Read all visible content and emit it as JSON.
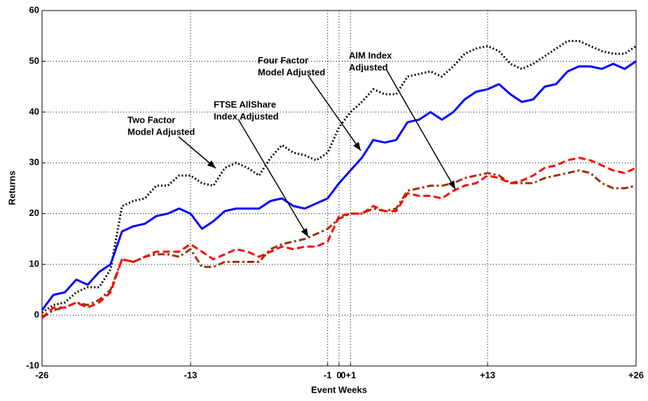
{
  "chart_data": {
    "type": "line",
    "xlabel": "Event Weeks",
    "ylabel": "Returns",
    "x": [
      -26,
      -25,
      -24,
      -23,
      -22,
      -21,
      -20,
      -19,
      -18,
      -17,
      -16,
      -15,
      -14,
      -13,
      -12,
      -11,
      -10,
      -9,
      -8,
      -7,
      -6,
      -5,
      -4,
      -3,
      -2,
      -1,
      0,
      1,
      2,
      3,
      4,
      5,
      6,
      7,
      8,
      9,
      10,
      11,
      12,
      13,
      14,
      15,
      16,
      17,
      18,
      19,
      20,
      21,
      22,
      23,
      24,
      25,
      26
    ],
    "xlim": [
      -26,
      26
    ],
    "xticks": [
      -26,
      -13,
      -1,
      0,
      {
        "value": 1,
        "label": "0+1"
      },
      {
        "value": 13,
        "label": "+13"
      },
      {
        "value": 26,
        "label": "+26"
      }
    ],
    "ylim": [
      -10,
      60
    ],
    "yticks": [
      -10,
      0,
      10,
      20,
      30,
      40,
      50,
      60
    ],
    "grid": true,
    "series": [
      {
        "name": "Two Factor Model Adjusted",
        "color": "#000000",
        "dash": "dotted",
        "values": [
          0.5,
          2,
          2.5,
          4.5,
          5.5,
          5.5,
          9,
          21.5,
          22.5,
          23,
          25.5,
          25.5,
          27.5,
          27.5,
          26,
          25.5,
          29,
          30,
          29,
          27.5,
          31,
          33.5,
          32,
          31.5,
          30.5,
          32,
          37,
          40,
          42,
          44.5,
          43.5,
          43.5,
          47,
          47.5,
          48,
          47,
          49,
          51.5,
          52.5,
          53,
          52,
          49.5,
          48.5,
          49.5,
          51,
          52.5,
          54,
          54,
          53,
          52,
          51.5,
          51.5,
          53
        ]
      },
      {
        "name": "Four Factor Model Adjusted",
        "color": "#0000ff",
        "dash": "solid",
        "values": [
          1,
          4,
          4.5,
          7,
          6,
          8.5,
          10,
          16.5,
          17.5,
          18,
          19.5,
          20,
          21,
          20,
          17,
          18.5,
          20.5,
          21,
          21,
          21,
          22.5,
          23,
          21.5,
          21,
          22,
          23,
          26,
          28.5,
          31,
          34.5,
          34,
          34.5,
          38,
          38.5,
          40,
          38.5,
          40,
          42.5,
          44,
          44.5,
          45.5,
          43.5,
          42,
          42.5,
          45,
          45.5,
          48,
          49,
          49,
          48.5,
          49.5,
          48.5,
          50
        ]
      },
      {
        "name": "FTSE AllShare Index Adjusted",
        "color": "#993300",
        "dash": "dashdot",
        "values": [
          -0.5,
          1,
          1.5,
          2.5,
          2,
          3,
          5,
          11,
          10.5,
          11.5,
          12,
          12,
          11.5,
          13,
          9.5,
          9.5,
          10.5,
          10.5,
          10.5,
          10.5,
          13,
          14,
          14.5,
          15,
          16,
          17,
          19,
          20,
          20,
          21,
          20.5,
          21,
          24.5,
          25,
          25.5,
          25.5,
          26,
          27,
          27.5,
          28,
          27.5,
          26,
          26,
          26,
          27,
          27.5,
          28,
          28.5,
          28,
          26,
          25,
          25,
          25.5
        ]
      },
      {
        "name": "AIM Index Adjusted",
        "color": "#ff0000",
        "dash": "dashed",
        "values": [
          -0.5,
          1.5,
          1.5,
          2.5,
          1.5,
          2.5,
          4.5,
          11,
          10.5,
          11.5,
          12.5,
          12.5,
          12.5,
          14,
          12.5,
          11,
          12,
          13,
          12.5,
          11.5,
          12.5,
          13.5,
          13,
          13.5,
          13.5,
          14.5,
          19.5,
          20,
          20,
          21.5,
          20.5,
          20.5,
          24,
          23.5,
          23.5,
          23,
          24.5,
          25.5,
          26,
          27.5,
          27,
          26,
          26.5,
          27.5,
          29,
          29.5,
          30.5,
          31,
          30.5,
          29.5,
          28.5,
          28,
          29
        ]
      }
    ],
    "annotations": [
      {
        "text": [
          "Two Factor",
          "Model Adjusted"
        ]
      },
      {
        "text": [
          "FTSE AllShare",
          "Index Adjusted"
        ]
      },
      {
        "text": [
          "Four Factor",
          "Model Adjusted"
        ]
      },
      {
        "text": [
          "AIM Index",
          "Adjusted"
        ]
      }
    ]
  }
}
